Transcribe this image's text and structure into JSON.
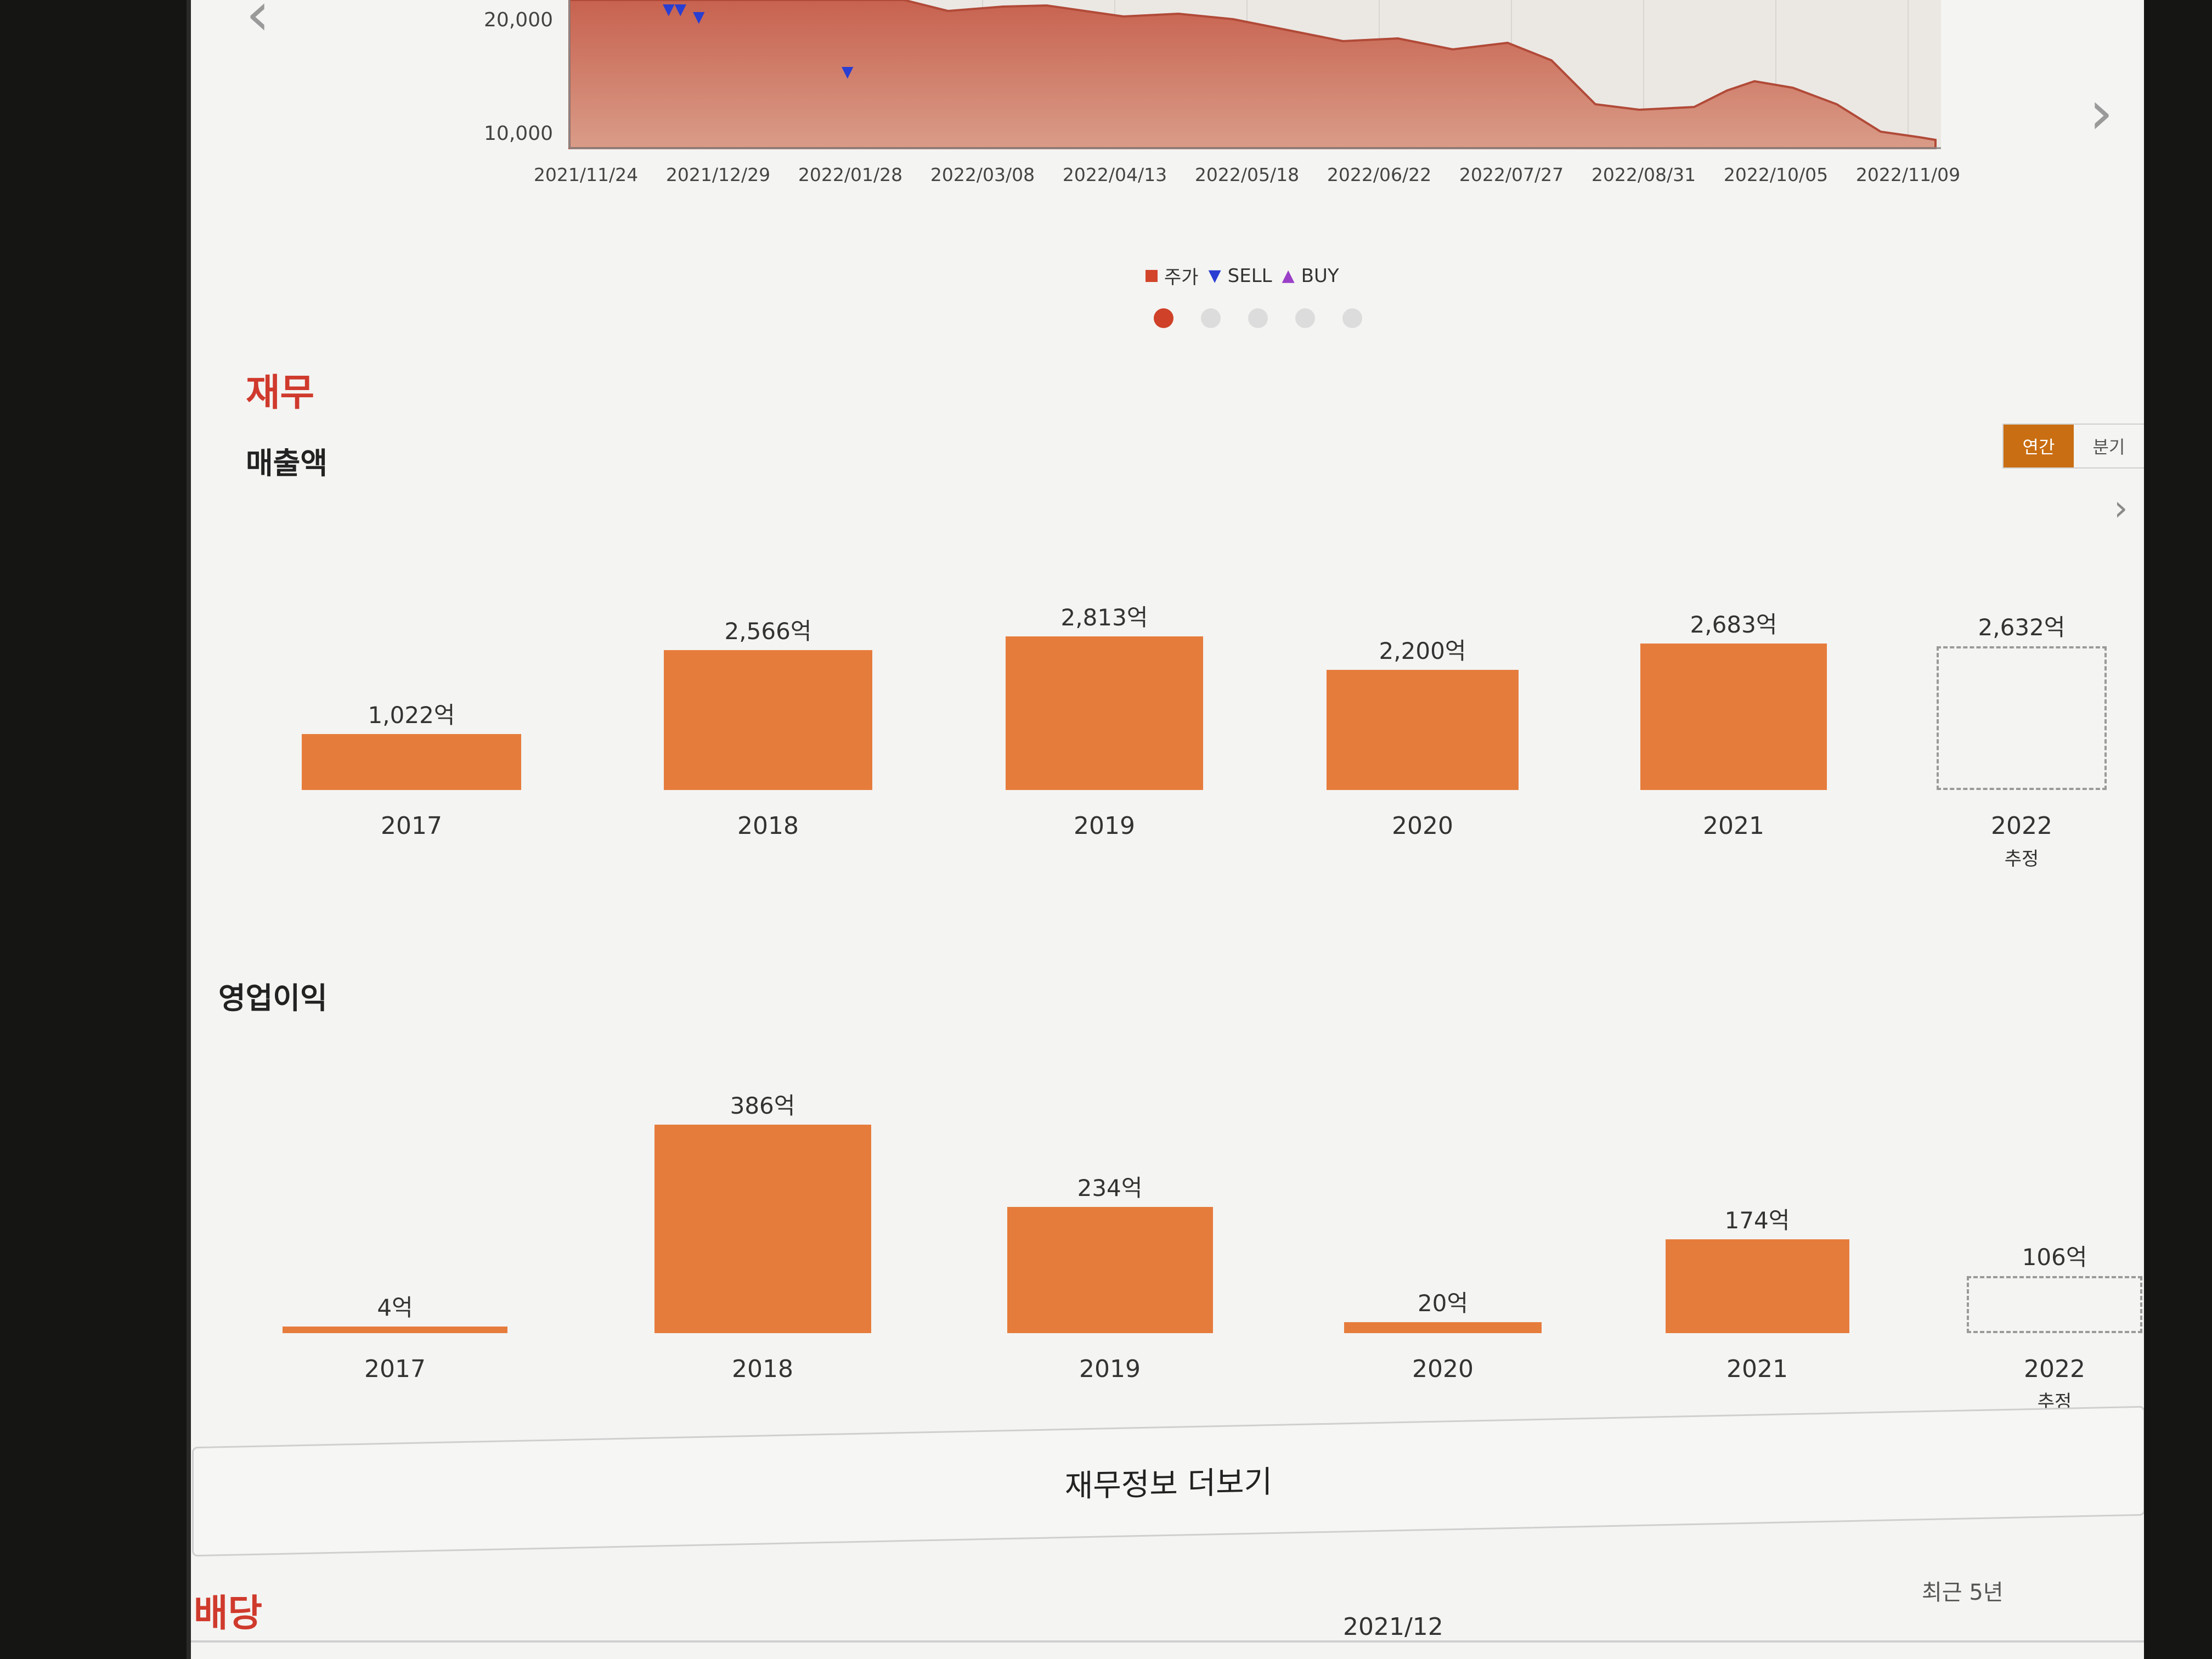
{
  "price_chart": {
    "y_ticks": [
      "20,000",
      "10,000"
    ],
    "x_ticks": [
      "2021/11/24",
      "2021/12/29",
      "2022/01/28",
      "2022/03/08",
      "2022/04/13",
      "2022/05/18",
      "2022/06/22",
      "2022/07/27",
      "2022/08/31",
      "2022/10/05",
      "2022/11/09"
    ],
    "legend": {
      "price": "주가",
      "sell": "SELL",
      "buy": "BUY"
    },
    "colors": {
      "area": "#c9705f",
      "sell": "#2a3ed2",
      "buy": "#9a3fc8"
    },
    "pagination": {
      "count": 5,
      "active": 0
    }
  },
  "section": {
    "title": "재무"
  },
  "toggle": {
    "annual": "연간",
    "quarter": "분기",
    "selected": "연간"
  },
  "revenue": {
    "title": "매출액",
    "chart_data": {
      "type": "bar",
      "categories": [
        "2017",
        "2018",
        "2019",
        "2020",
        "2021",
        "2022"
      ],
      "values": [
        1022,
        2566,
        2813,
        2200,
        2683,
        2632
      ],
      "labels": [
        "1,022억",
        "2,566억",
        "2,813억",
        "2,200억",
        "2,683억",
        "2,632억"
      ],
      "estimate_index": 5,
      "estimate_label": "추정"
    }
  },
  "op_income": {
    "title": "영업이익",
    "chart_data": {
      "type": "bar",
      "categories": [
        "2017",
        "2018",
        "2019",
        "2020",
        "2021",
        "2022"
      ],
      "values": [
        4,
        386,
        234,
        20,
        174,
        106
      ],
      "labels": [
        "4억",
        "386억",
        "234억",
        "20억",
        "174억",
        "106억"
      ],
      "estimate_index": 5,
      "estimate_label": "추정"
    }
  },
  "more_button": "재무정보 더보기",
  "dividend": {
    "title": "배당",
    "period": "최근 5년",
    "column": "2021/12"
  },
  "colors": {
    "accent": "#cf3a2c",
    "bar": "#e67c3c",
    "toggle_on": "#c96e12"
  }
}
